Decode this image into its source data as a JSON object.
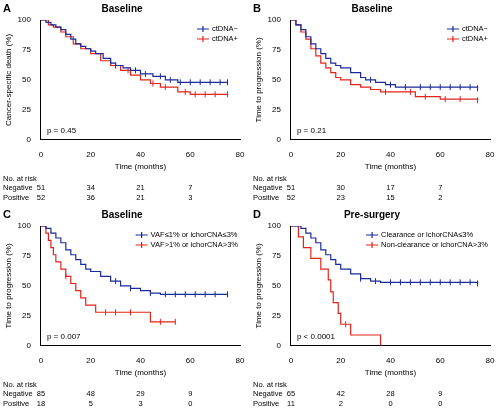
{
  "chart_data": [
    {
      "type": "line",
      "panel_label": "A",
      "title": "Baseline",
      "x_label": "Time (months)",
      "y_label": "Cancer-specific death (%)",
      "xlim": [
        0,
        80
      ],
      "xticks": [
        0,
        20,
        40,
        60,
        80
      ],
      "ylim": [
        0,
        100
      ],
      "yticks": [
        0,
        25,
        50,
        75,
        100
      ],
      "grid": false,
      "legend": "top right",
      "line_style": "step",
      "marker": "line",
      "annotation": "p = 0.45",
      "series": [
        {
          "name": "ctDNA−",
          "color": "#1a2b9b",
          "x": [
            0,
            2,
            4,
            6,
            8,
            10,
            12,
            14,
            16,
            18,
            20,
            22,
            25,
            28,
            30,
            33,
            36,
            40,
            45,
            50,
            55,
            75
          ],
          "values": [
            100,
            98,
            96,
            94,
            92,
            88,
            84,
            80,
            78,
            76,
            74,
            72,
            68,
            64,
            62,
            60,
            58,
            55,
            53,
            50,
            48,
            48
          ],
          "censored": [
            30,
            38,
            42,
            48,
            52,
            56,
            60,
            64,
            68,
            72,
            75
          ]
        },
        {
          "name": "ctDNA+",
          "color": "#e3241b",
          "x": [
            0,
            3,
            5,
            8,
            10,
            13,
            16,
            20,
            24,
            28,
            32,
            36,
            40,
            44,
            48,
            55,
            60,
            75
          ],
          "values": [
            100,
            96,
            94,
            90,
            86,
            80,
            76,
            72,
            66,
            62,
            58,
            54,
            50,
            47,
            44,
            40,
            38,
            38
          ],
          "censored": [
            35,
            45,
            50,
            58,
            62,
            66,
            70,
            75
          ]
        }
      ],
      "at_risk": {
        "title": "No. at risk",
        "times": [
          0,
          20,
          40,
          60
        ],
        "rows": [
          {
            "name": "Negative",
            "values": [
              51,
              34,
              21,
              7
            ]
          },
          {
            "name": "Positive",
            "values": [
              52,
              36,
              21,
              3
            ]
          }
        ]
      }
    },
    {
      "type": "line",
      "panel_label": "B",
      "title": "Baseline",
      "x_label": "Time (months)",
      "y_label": "Time to progression (%)",
      "xlim": [
        0,
        80
      ],
      "xticks": [
        0,
        20,
        40,
        60,
        80
      ],
      "ylim": [
        0,
        100
      ],
      "yticks": [
        0,
        25,
        50,
        75,
        100
      ],
      "grid": false,
      "legend": "top right",
      "line_style": "step",
      "marker": "line",
      "annotation": "p = 0.21",
      "series": [
        {
          "name": "ctDNA−",
          "color": "#1a2b9b",
          "x": [
            0,
            2,
            4,
            6,
            8,
            10,
            12,
            14,
            16,
            18,
            20,
            24,
            28,
            30,
            34,
            38,
            42,
            75
          ],
          "values": [
            100,
            96,
            92,
            86,
            80,
            76,
            72,
            68,
            64,
            62,
            60,
            56,
            52,
            50,
            48,
            46,
            44,
            43
          ],
          "censored": [
            32,
            40,
            46,
            52,
            56,
            60,
            64,
            68,
            72,
            75
          ]
        },
        {
          "name": "ctDNA+",
          "color": "#e3241b",
          "x": [
            0,
            2,
            4,
            6,
            8,
            10,
            12,
            14,
            16,
            18,
            20,
            24,
            28,
            32,
            36,
            50,
            60,
            75
          ],
          "values": [
            100,
            96,
            90,
            84,
            76,
            70,
            64,
            60,
            56,
            52,
            50,
            46,
            44,
            42,
            40,
            36,
            34,
            33
          ],
          "censored": [
            38,
            48,
            54,
            62,
            68,
            75
          ]
        }
      ],
      "at_risk": {
        "title": "No. at risk",
        "times": [
          0,
          20,
          40,
          60
        ],
        "rows": [
          {
            "name": "Negative",
            "values": [
              51,
              30,
              17,
              7
            ]
          },
          {
            "name": "Positive",
            "values": [
              52,
              23,
              15,
              2
            ]
          }
        ]
      }
    },
    {
      "type": "line",
      "panel_label": "C",
      "title": "Baseline",
      "x_label": "Time (months)",
      "y_label": "Time to progression (%)",
      "xlim": [
        0,
        80
      ],
      "xticks": [
        0,
        20,
        40,
        60,
        80
      ],
      "ylim": [
        0,
        100
      ],
      "yticks": [
        0,
        25,
        50,
        75,
        100
      ],
      "grid": false,
      "legend": "top right",
      "line_style": "step",
      "marker": "line",
      "annotation": "p = 0.007",
      "series": [
        {
          "name": "VAF≤1% or ichorCNA≤3%",
          "color": "#1a2b9b",
          "x": [
            0,
            2,
            4,
            6,
            8,
            10,
            12,
            14,
            16,
            18,
            20,
            24,
            28,
            32,
            36,
            40,
            44,
            48,
            75
          ],
          "values": [
            100,
            98,
            94,
            90,
            86,
            80,
            76,
            72,
            68,
            64,
            62,
            58,
            54,
            50,
            48,
            46,
            44,
            43,
            43
          ],
          "censored": [
            30,
            36,
            44,
            50,
            54,
            58,
            62,
            66,
            70,
            75
          ]
        },
        {
          "name": "VAF>1% or ichorCNA>3%",
          "color": "#e3241b",
          "x": [
            0,
            2,
            3,
            4,
            5,
            6,
            8,
            10,
            12,
            14,
            16,
            18,
            22,
            42,
            44,
            54
          ],
          "values": [
            100,
            94,
            88,
            82,
            76,
            70,
            64,
            58,
            52,
            46,
            40,
            34,
            28,
            28,
            20,
            20
          ],
          "censored": [
            10,
            26,
            30,
            36,
            48,
            54
          ]
        }
      ],
      "at_risk": {
        "title": "No. at risk",
        "times": [
          0,
          20,
          40,
          60
        ],
        "rows": [
          {
            "name": "Negative",
            "values": [
              85,
              48,
              29,
              9
            ]
          },
          {
            "name": "Positive",
            "values": [
              18,
              5,
              3,
              0
            ]
          }
        ]
      }
    },
    {
      "type": "line",
      "panel_label": "D",
      "title": "Pre-surgery",
      "x_label": "Time (months)",
      "y_label": "Time to progression (%)",
      "xlim": [
        0,
        80
      ],
      "xticks": [
        0,
        20,
        40,
        60,
        80
      ],
      "ylim": [
        0,
        100
      ],
      "yticks": [
        0,
        25,
        50,
        75,
        100
      ],
      "grid": false,
      "legend": "top right",
      "line_style": "step",
      "marker": "line",
      "annotation": "p < 0.0001",
      "series": [
        {
          "name": "Clearance or ichorCNA≤3%",
          "color": "#1a2b9b",
          "x": [
            0,
            4,
            6,
            8,
            10,
            12,
            14,
            16,
            18,
            20,
            24,
            28,
            32,
            36,
            75
          ],
          "values": [
            100,
            98,
            94,
            90,
            86,
            80,
            76,
            72,
            68,
            64,
            60,
            56,
            54,
            53,
            52
          ],
          "censored": [
            28,
            34,
            40,
            44,
            48,
            52,
            56,
            60,
            64,
            68,
            72,
            75
          ]
        },
        {
          "name": "Non-clearance or ichorCNA>3%",
          "color": "#e3241b",
          "x": [
            0,
            3,
            5,
            8,
            12,
            15,
            16,
            17,
            19,
            20,
            24,
            36
          ],
          "values": [
            100,
            91,
            82,
            73,
            64,
            55,
            45,
            36,
            27,
            18,
            9,
            0
          ],
          "censored": [
            22
          ]
        }
      ],
      "at_risk": {
        "title": "No. at risk",
        "times": [
          0,
          20,
          40,
          60
        ],
        "rows": [
          {
            "name": "Negative",
            "values": [
              65,
              42,
              28,
              9
            ]
          },
          {
            "name": "Positive",
            "values": [
              11,
              2,
              0,
              0
            ]
          }
        ]
      }
    }
  ]
}
